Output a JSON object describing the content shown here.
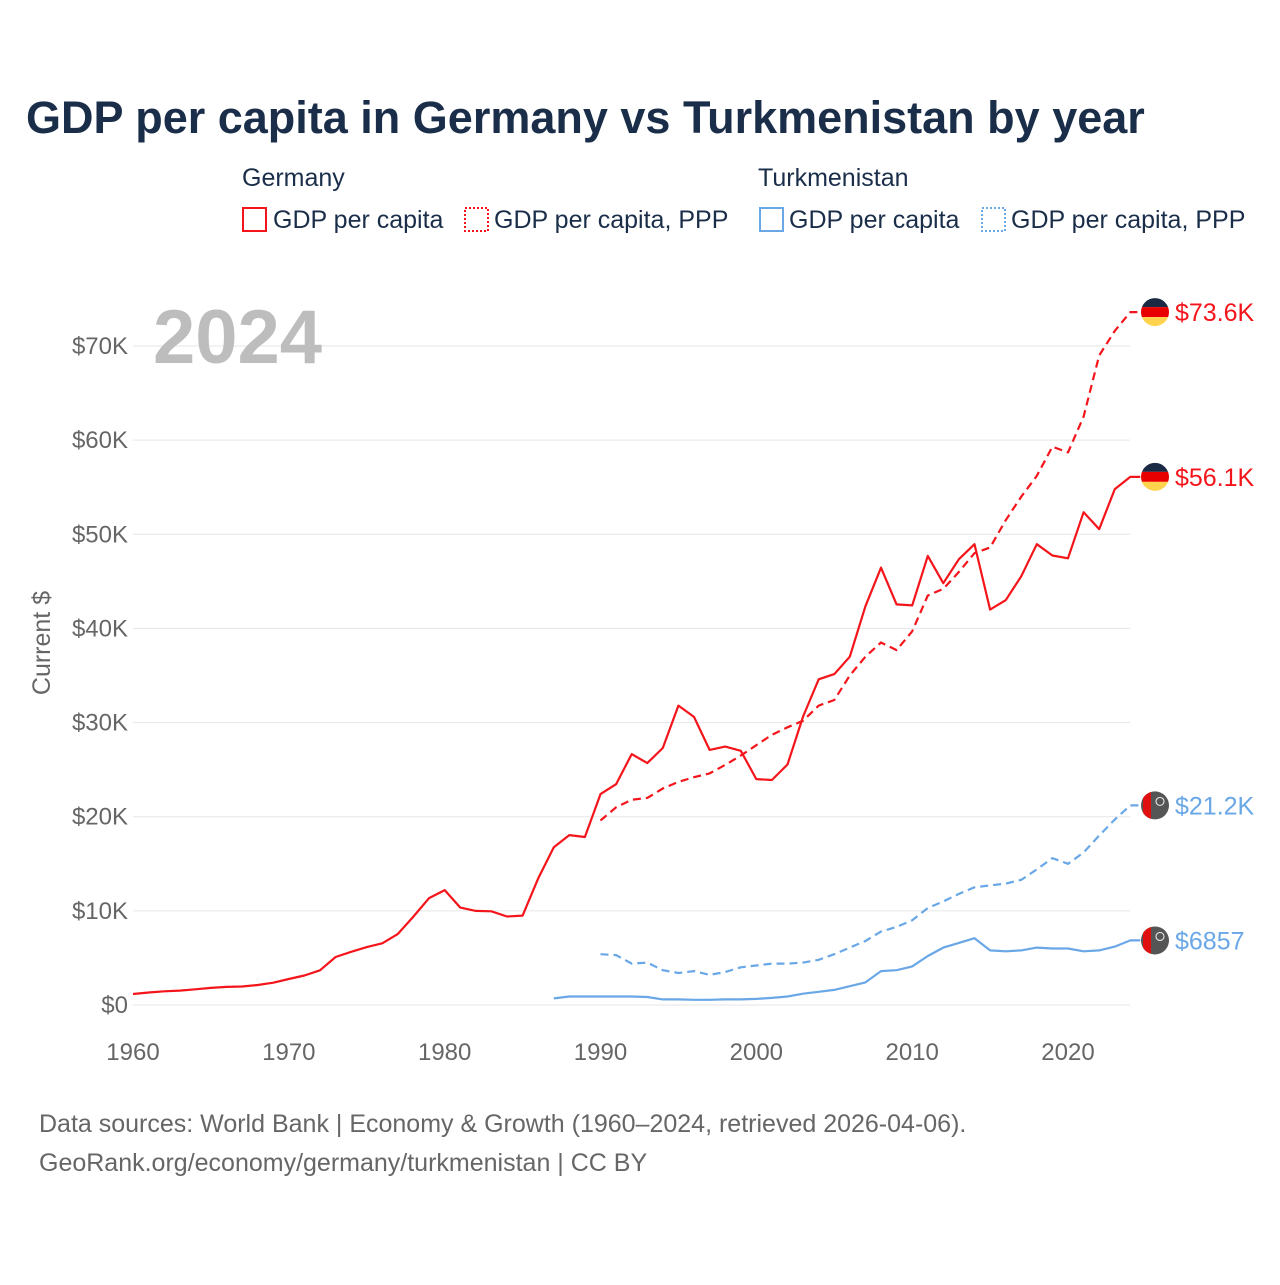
{
  "chart_data": {
    "type": "line",
    "title": "GDP per capita in Germany vs Turkmenistan by year",
    "ylabel": "Current $",
    "xlabel": "",
    "year_watermark": "2024",
    "xlim": [
      1960,
      2024
    ],
    "ylim": [
      0,
      75000
    ],
    "x_ticks": [
      1960,
      1970,
      1980,
      1990,
      2000,
      2010,
      2020
    ],
    "x_tick_labels": [
      "1960",
      "1970",
      "1980",
      "1990",
      "2000",
      "2010",
      "2020"
    ],
    "y_ticks": [
      0,
      10000,
      20000,
      30000,
      40000,
      50000,
      60000,
      70000
    ],
    "y_tick_labels": [
      "$0",
      "$10K",
      "$20K",
      "$30K",
      "$40K",
      "$50K",
      "$60K",
      "$70K"
    ],
    "grid": true,
    "legend_groups": [
      {
        "country": "Germany",
        "items": [
          "GDP per capita",
          "GDP per capita, PPP"
        ]
      },
      {
        "country": "Turkmenistan",
        "items": [
          "GDP per capita",
          "GDP per capita, PPP"
        ]
      }
    ],
    "colors": {
      "Germany": "#f4151b",
      "Turkmenistan": "#69a7e6"
    },
    "series": [
      {
        "name": "Germany GDP per capita",
        "country": "Germany",
        "style": "solid",
        "start": 1960,
        "end_label": "$56.1K",
        "values": [
          1167,
          1325,
          1452,
          1527,
          1668,
          1820,
          1922,
          1968,
          2126,
          2371,
          2761,
          3137,
          3685,
          5100,
          5650,
          6150,
          6550,
          7550,
          9400,
          11350,
          12200,
          10350,
          10000,
          9950,
          9400,
          9500,
          13450,
          16750,
          18050,
          17850,
          22400,
          23450,
          26650,
          25700,
          27300,
          31800,
          30600,
          27100,
          27450,
          27000,
          24000,
          23900,
          25550,
          30650,
          34600,
          35150,
          37000,
          42350,
          46450,
          42550,
          42450,
          47700,
          44800,
          47350,
          48950,
          42000,
          43000,
          45550,
          48950,
          47750,
          47450,
          52350,
          50550,
          54800,
          56100
        ]
      },
      {
        "name": "Germany GDP per capita, PPP",
        "country": "Germany",
        "style": "dashed",
        "start": 1990,
        "end_label": "$73.6K",
        "values": [
          19600,
          21000,
          21800,
          22000,
          23000,
          23700,
          24200,
          24600,
          25500,
          26500,
          27600,
          28700,
          29500,
          30200,
          31800,
          32400,
          35000,
          37000,
          38500,
          37700,
          39700,
          43500,
          44200,
          46000,
          48000,
          48600,
          51500,
          54000,
          56200,
          59300,
          58700,
          62500,
          69000,
          71600,
          73600
        ]
      },
      {
        "name": "Turkmenistan GDP per capita",
        "country": "Turkmenistan",
        "style": "solid",
        "start": 1987,
        "end_label": "$6857",
        "values": [
          700,
          900,
          900,
          900,
          900,
          900,
          850,
          600,
          600,
          550,
          550,
          600,
          600,
          650,
          750,
          900,
          1200,
          1400,
          1600,
          2000,
          2400,
          3600,
          3700,
          4100,
          5200,
          6100,
          6600,
          7100,
          5800,
          5700,
          5800,
          6100,
          6000,
          6000,
          5700,
          5800,
          6200,
          6857
        ]
      },
      {
        "name": "Turkmenistan GDP per capita, PPP",
        "country": "Turkmenistan",
        "style": "dashed",
        "start": 1990,
        "end_label": "$21.2K",
        "values": [
          5400,
          5300,
          4400,
          4500,
          3700,
          3400,
          3600,
          3200,
          3500,
          4000,
          4200,
          4400,
          4400,
          4500,
          4800,
          5400,
          6100,
          6800,
          7800,
          8300,
          9000,
          10300,
          11000,
          11800,
          12500,
          12700,
          12900,
          13300,
          14400,
          15600,
          15000,
          16200,
          18000,
          19700,
          21200
        ]
      }
    ]
  },
  "footer": {
    "line1": "Data sources: World Bank | Economy & Growth (1960–2024, retrieved 2026-04-06).",
    "line2": "GeoRank.org/economy/germany/turkmenistan | CC BY"
  }
}
